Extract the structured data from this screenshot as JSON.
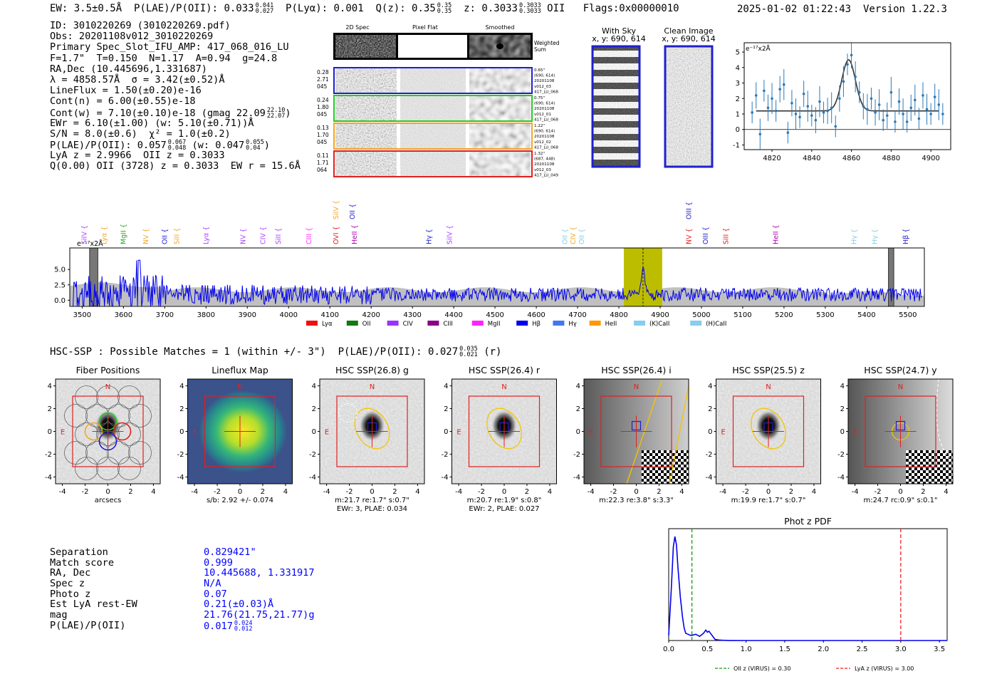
{
  "header": {
    "ew": "EW: 3.5±0.5Å",
    "plae_label": "P(LAE)/P(OII): 0.033",
    "plae_hi": "0.041",
    "plae_lo": "0.027",
    "plya": "P(Lyα): 0.001",
    "qz_label": "Q(z): 0.35",
    "qz_hi": "0.35",
    "qz_lo": "0.35",
    "z_label": "z: 0.3033",
    "z_hi": "0.3033",
    "z_lo": "0.3033",
    "z_line": "OII",
    "flags": "Flags:0x00000010",
    "datetime": "2025-01-02 01:22:43",
    "version": "Version 1.22.3"
  },
  "info": {
    "l1": "ID: 3010220269 (3010220269.pdf)",
    "l2": "Obs: 20201108v012_3010220269",
    "l3": "Primary Spec_Slot_IFU_AMP: 417_068_016_LU",
    "l4": "F=1.7\"  T=0.150  N=1.17  A=0.94  g=24.8",
    "l5": "RA,Dec (10.445696,1.331687)",
    "l6": "λ = 4858.57Å  σ = 3.42(±0.52)Å",
    "l7": "LineFlux = 1.50(±0.20)e-16",
    "l8": "Cont(n) = 6.00(±0.55)e-18",
    "l9": "Cont(w) = 7.10(±0.10)e-18 (gmag 22.09",
    "l9_hi": "22.10",
    "l9_lo": "22.07",
    "l10": "EWr = 6.10(±1.00) (w: 5.10(±0.71))Å",
    "l11": "S/N = 8.0(±0.6)  χ² = 1.0(±0.2)",
    "l12a": "P(LAE)/P(OII): 0.057",
    "l12a_hi": "0.067",
    "l12a_lo": "0.048",
    "l12b": "(w: 0.047",
    "l12b_hi": "0.055",
    "l12b_lo": "0.04",
    "l13": "LyA z = 2.9966  OII z = 0.3033",
    "l14": "Q(0.00) OII (3728) z = 0.3033  EW r = 15.6Å"
  },
  "cutouts": {
    "col_labels": [
      "2D Spec",
      "Pixel Flat",
      "Smoothed"
    ],
    "weighted_label": "Weighted\nSum",
    "rows": [
      {
        "left": [
          "0.28",
          "2.71",
          "045"
        ],
        "right": [
          "0.65\"",
          "(690, 614)",
          "20201108",
          "v012_03",
          "417_LU_068"
        ],
        "color": "#1f1fd0"
      },
      {
        "left": [
          "0.24",
          "1.80",
          "045"
        ],
        "right": [
          "0.75\"",
          "(690, 614)",
          "20201108",
          "v012_01",
          "417_LU_068"
        ],
        "color": "#22cc22"
      },
      {
        "left": [
          "0.13",
          "1.70",
          "045"
        ],
        "right": [
          "1.22\"",
          "(690, 614)",
          "20201108",
          "v012_02",
          "417_LU_068"
        ],
        "color": "#f5a623"
      },
      {
        "left": [
          "0.11",
          "1.71",
          "064"
        ],
        "right": [
          "1.32\"",
          "(687, 448)",
          "20201108",
          "v012_03",
          "417_LU_049"
        ],
        "color": "#e02020"
      }
    ],
    "with_sky": "With Sky",
    "with_sky_xy": "x, y: 690, 614",
    "clean_image": "Clean Image",
    "clean_xy": "x, y: 690, 614"
  },
  "zoom_plot": {
    "ylabel": "e⁻¹⁷x2Å",
    "xticks": [
      "4820",
      "4840",
      "4860",
      "4880",
      "4900"
    ],
    "yticks": [
      "-1",
      "0",
      "1",
      "2",
      "3",
      "4",
      "5"
    ]
  },
  "chart_data": [
    {
      "type": "line",
      "name": "full_spectrum",
      "ylabel": "e⁻¹⁷x2Å",
      "xlim": [
        3470,
        5540
      ],
      "ylim": [
        -1.0,
        8.5
      ],
      "xticks": [
        "3500",
        "3600",
        "3700",
        "3800",
        "3900",
        "4000",
        "4100",
        "4200",
        "4300",
        "4400",
        "4500",
        "4600",
        "4700",
        "4800",
        "4900",
        "5000",
        "5100",
        "5200",
        "5300",
        "5400",
        "5500"
      ],
      "yticks": [
        "0.0",
        "2.5",
        "5.0"
      ],
      "highlight_window": [
        4812,
        4905
      ],
      "emission_peak": 4858.57,
      "line_markers": [
        {
          "label": "SiIV",
          "wave": 3505,
          "color": "#aa44ff"
        },
        {
          "label": "Lyα",
          "wave": 3554,
          "color": "#f5a623"
        },
        {
          "label": "MgII",
          "wave": 3600,
          "color": "#22aa22"
        },
        {
          "label": "NV",
          "wave": 3655,
          "color": "#f5a623"
        },
        {
          "label": "OII",
          "wave": 3700,
          "color": "#1f1fd0"
        },
        {
          "label": "SiII",
          "wave": 3730,
          "color": "#f5a623"
        },
        {
          "label": "Lyα",
          "wave": 3800,
          "color": "#aa44ff"
        },
        {
          "label": "NV",
          "wave": 3890,
          "color": "#aa44ff"
        },
        {
          "label": "CIV",
          "wave": 3938,
          "color": "#aa44ff"
        },
        {
          "label": "SiII",
          "wave": 3975,
          "color": "#aa44ff"
        },
        {
          "label": "CIII",
          "wave": 4050,
          "color": "#ff33ff"
        },
        {
          "label": "OVI",
          "wave": 4115,
          "color": "#e02020"
        },
        {
          "label": "SiIV",
          "wave": 4115,
          "color": "#f5a623",
          "high": true
        },
        {
          "label": "OII",
          "wave": 4155,
          "color": "#1f1fd0",
          "high": true
        },
        {
          "label": "HeII",
          "wave": 4160,
          "color": "#aa00aa"
        },
        {
          "label": "Hγ",
          "wave": 4340,
          "color": "#1f1fd0"
        },
        {
          "label": "SiIV",
          "wave": 4390,
          "color": "#aa44ff"
        },
        {
          "label": "OII",
          "wave": 4670,
          "color": "#87ceeb"
        },
        {
          "label": "CIV",
          "wave": 4690,
          "color": "#f5a623"
        },
        {
          "label": "OII",
          "wave": 4710,
          "color": "#87ceeb"
        },
        {
          "label": "NV",
          "wave": 4970,
          "color": "#e02020"
        },
        {
          "label": "OIII",
          "wave": 4970,
          "color": "#1f1fd0",
          "high": true
        },
        {
          "label": "OIII",
          "wave": 5010,
          "color": "#1f1fd0"
        },
        {
          "label": "SiII",
          "wave": 5060,
          "color": "#e02020"
        },
        {
          "label": "HeII",
          "wave": 5180,
          "color": "#aa00aa"
        },
        {
          "label": "Hγ",
          "wave": 5370,
          "color": "#87ceeb"
        },
        {
          "label": "Hγ",
          "wave": 5420,
          "color": "#87ceeb"
        },
        {
          "label": "Hβ",
          "wave": 5495,
          "color": "#1f1fd0"
        }
      ],
      "legend": [
        {
          "label": "Lyα",
          "color": "#ee1111"
        },
        {
          "label": "OII",
          "color": "#117711"
        },
        {
          "label": "CIV",
          "color": "#9933ff"
        },
        {
          "label": "CIII",
          "color": "#880088"
        },
        {
          "label": "MgII",
          "color": "#ff22ff"
        },
        {
          "label": "Hβ",
          "color": "#0000ee"
        },
        {
          "label": "Hγ",
          "color": "#4477ee"
        },
        {
          "label": "HeII",
          "color": "#ff9900"
        },
        {
          "label": "(K)CaII",
          "color": "#88ccee"
        },
        {
          "label": "(H)CaII",
          "color": "#88ccee"
        }
      ]
    },
    {
      "type": "scatter",
      "name": "zoom_emission_line",
      "xlim": [
        4806,
        4910
      ],
      "ylim": [
        -1.3,
        5.6
      ],
      "x": [
        4810,
        4812,
        4814,
        4816,
        4818,
        4820,
        4822,
        4824,
        4826,
        4828,
        4830,
        4832,
        4834,
        4836,
        4838,
        4840,
        4842,
        4844,
        4846,
        4848,
        4850,
        4852,
        4854,
        4856,
        4858,
        4860,
        4862,
        4864,
        4866,
        4868,
        4870,
        4872,
        4874,
        4876,
        4878,
        4880,
        4882,
        4884,
        4886,
        4888,
        4890,
        4892,
        4894,
        4896,
        4898,
        4900,
        4902,
        4904,
        4906
      ],
      "y": [
        1.1,
        2.2,
        -0.3,
        2.5,
        1.4,
        2.0,
        1.2,
        2.6,
        2.9,
        -0.2,
        1.7,
        1.0,
        0.8,
        2.3,
        1.5,
        0.9,
        0.6,
        1.8,
        1.1,
        1.2,
        1.4,
        0.2,
        2.0,
        3.1,
        4.2,
        4.8,
        3.4,
        2.4,
        1.5,
        1.3,
        2.0,
        1.1,
        1.6,
        0.6,
        0.9,
        2.4,
        0.5,
        1.8,
        1.0,
        0.5,
        1.4,
        1.9,
        0.7,
        2.2,
        1.3,
        1.0,
        2.1,
        1.6,
        1.0
      ],
      "fit": {
        "continuum": 1.2,
        "amplitude": 3.3,
        "center": 4858.57,
        "sigma": 3.42
      },
      "xticks": [
        "4820",
        "4840",
        "4860",
        "4880",
        "4900"
      ]
    },
    {
      "type": "line",
      "name": "phot_z_pdf",
      "title": "Phot z PDF",
      "xlim": [
        0.0,
        3.6
      ],
      "xticks": [
        "0.0",
        "0.5",
        "1.0",
        "1.5",
        "2.0",
        "2.5",
        "3.0",
        "3.5"
      ],
      "x": [
        0.0,
        0.03,
        0.06,
        0.08,
        0.1,
        0.12,
        0.15,
        0.18,
        0.2,
        0.22,
        0.25,
        0.28,
        0.3,
        0.35,
        0.4,
        0.45,
        0.48,
        0.5,
        0.52,
        0.55,
        0.58,
        0.6,
        0.65,
        0.7,
        0.8,
        1.0,
        1.5,
        2.0,
        2.5,
        3.0,
        3.6
      ],
      "y": [
        0.05,
        0.45,
        0.9,
        1.0,
        0.92,
        0.7,
        0.42,
        0.22,
        0.12,
        0.07,
        0.06,
        0.05,
        0.05,
        0.06,
        0.04,
        0.07,
        0.1,
        0.08,
        0.09,
        0.06,
        0.03,
        0.01,
        0.005,
        0.002,
        0.001,
        0.0,
        0.0,
        0.0,
        0.0,
        0.0,
        0.0
      ],
      "vlines": [
        {
          "x": 0.3,
          "color": "#119911",
          "label": "OII z (VIRUS) = 0.30"
        },
        {
          "x": 3.0,
          "color": "#ee2222",
          "label": "LyA z (VIRUS) = 3.00"
        }
      ]
    }
  ],
  "hsc": {
    "title": "HSC-SSP : Possible Matches = 1 (within +/- 3\")",
    "plae": "P(LAE)/P(OII): 0.027",
    "plae_hi": "0.035",
    "plae_lo": "0.021",
    "plae_band": "(r)",
    "panels": [
      {
        "title": "Fiber Positions",
        "cap1": "arcsecs",
        "cap2": "",
        "kind": "fiber"
      },
      {
        "title": "Lineflux Map",
        "cap1": "s/b: 2.92 +/- 0.074",
        "cap2": "",
        "kind": "flux"
      },
      {
        "title": "HSC SSP(26.8) g",
        "cap1": "m:21.7  re:1.7\"  s:0.7\"",
        "cap2": "EWr: 3, PLAE: 0.034",
        "kind": "g"
      },
      {
        "title": "HSC SSP(26.4) r",
        "cap1": "m:20.7  re:1.9\"  s:0.8\"",
        "cap2": "EWr: 2, PLAE: 0.027",
        "kind": "r"
      },
      {
        "title": "HSC SSP(26.4) i",
        "cap1": "m:22.3  re:3.8\"  s:3.3\"",
        "cap2": "",
        "kind": "i"
      },
      {
        "title": "HSC SSP(25.5) z",
        "cap1": "m:19.9  re:1.7\"  s:0.7\"",
        "cap2": "",
        "kind": "z"
      },
      {
        "title": "HSC SSP(24.7) y",
        "cap1": "m:24.7  rc:0.9\"  s:0.1\"",
        "cap2": "",
        "kind": "y"
      }
    ],
    "axis_ticks": [
      "-4",
      "-2",
      "0",
      "2",
      "4"
    ],
    "north": "N",
    "east": "E"
  },
  "match": {
    "rows": [
      {
        "label": "Separation",
        "value": "0.829421\""
      },
      {
        "label": "Match score",
        "value": "0.999"
      },
      {
        "label": "RA, Dec",
        "value": "10.445688, 1.331917"
      },
      {
        "label": "Spec z",
        "value": "N/A"
      },
      {
        "label": "Photo z",
        "value": "0.07"
      },
      {
        "label": "Est LyA rest-EW",
        "value": "0.21(±0.03)Å"
      },
      {
        "label": "mag",
        "value": "21.76(21.75,21.77)g"
      },
      {
        "label": "P(LAE)/P(OII)",
        "value": "0.017",
        "hi": "0.024",
        "lo": "0.012"
      }
    ]
  },
  "colors": {
    "spectrum": "#0000ee",
    "highlight": "#bdbd00",
    "axis": "#000000",
    "sky": "#c0c0c0"
  }
}
